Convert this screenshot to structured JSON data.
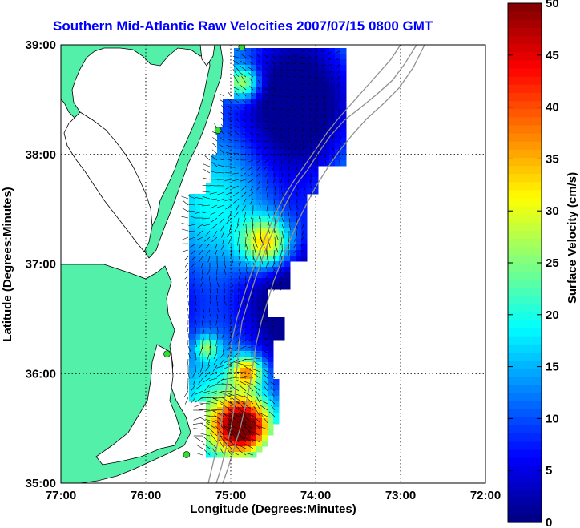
{
  "title": "Southern Mid-Atlantic Raw Velocities 2007/07/15 0800 GMT",
  "x_axis_label": "Longitude (Degrees:Minutes)",
  "y_axis_label": "Latitude (Degrees:Minutes)",
  "colorbar_label": "Surface Velocity (cm/s)",
  "x_ticks": [
    "77:00",
    "76:00",
    "75:00",
    "74:00",
    "73:00",
    "72:00"
  ],
  "y_ticks": [
    "39:00",
    "38:00",
    "37:00",
    "36:00",
    "35:00"
  ],
  "colorbar_ticks": [
    "0",
    "5",
    "10",
    "15",
    "20",
    "25",
    "30",
    "35",
    "40",
    "45",
    "50"
  ],
  "colors": {
    "land": "#52f0a8",
    "ocean": "#ffffff",
    "grid": "#000000",
    "title": "#0000ff",
    "site_marker": "#2ee02e"
  },
  "colormap": "jet",
  "map_extent": {
    "lon_min": -77,
    "lon_max": -72,
    "lat_min": 35,
    "lat_max": 39
  },
  "colorbar_range": [
    0,
    50
  ],
  "radar_sites": [
    {
      "lon": -74.87,
      "lat": 38.98
    },
    {
      "lon": -75.15,
      "lat": 38.22
    },
    {
      "lon": -75.75,
      "lat": 36.18
    },
    {
      "lon": -75.52,
      "lat": 35.26
    }
  ]
}
